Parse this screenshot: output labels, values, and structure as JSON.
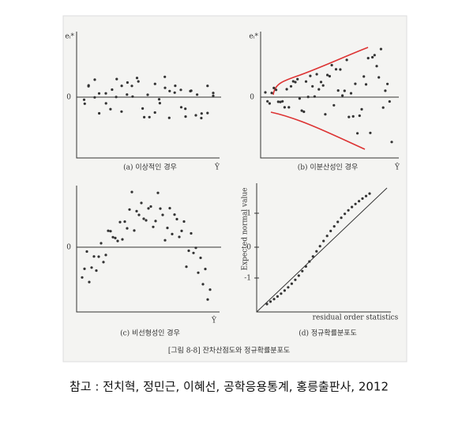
{
  "panels": [
    {
      "y_label": "eᵢ*",
      "zero": "0",
      "x_label": "Ŷ",
      "caption": "(a) 이상적인 경우"
    },
    {
      "y_label": "eᵢ*",
      "zero": "0",
      "x_label": "Ŷ",
      "caption": "(b) 이분산성인 경우"
    },
    {
      "zero": "0",
      "x_label": "Ŷ",
      "caption": "(c) 비선형성인 경우"
    },
    {
      "y_label": "Expected normal value",
      "x_label": "residual order statistics",
      "ticks": [
        "1",
        "0",
        "-1"
      ],
      "caption": "(d) 정규확률분포도"
    }
  ],
  "figure_caption": "[그림 8-8] 잔차산점도와 정규확률분포도",
  "reference": "참고 : 전치혁, 정민근, 이혜선, 공학응용통계, 홍릉출판사, 2012"
}
